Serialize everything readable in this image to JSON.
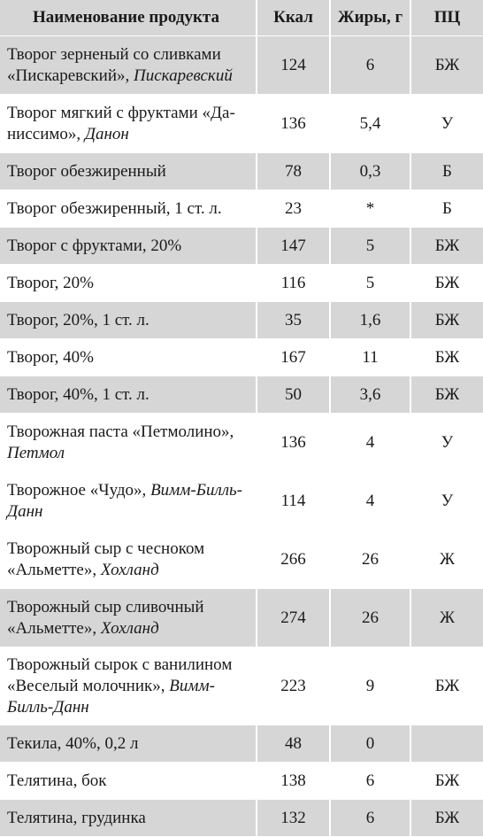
{
  "header": {
    "name": "Наименование продукта",
    "kcal": "Ккал",
    "fat": "Жиры, г",
    "pc": "ПЦ"
  },
  "rows": [
    {
      "name": "Творог зерненый со сливками «Пискаревский», ",
      "brand": "Пискаревский",
      "kcal": "124",
      "fat": "6",
      "pc": "БЖ"
    },
    {
      "name": "Творог мягкий с фруктами «Да-ниссимо», ",
      "brand": "Данон",
      "kcal": "136",
      "fat": "5,4",
      "pc": "У"
    },
    {
      "name": "Творог обезжиренный",
      "brand": "",
      "kcal": "78",
      "fat": "0,3",
      "pc": "Б"
    },
    {
      "name": "Творог обезжиренный, 1 ст. л.",
      "brand": "",
      "kcal": "23",
      "fat": "*",
      "pc": "Б"
    },
    {
      "name": "Творог с фруктами, 20%",
      "brand": "",
      "kcal": "147",
      "fat": "5",
      "pc": "БЖ"
    },
    {
      "name": "Творог, 20%",
      "brand": "",
      "kcal": "116",
      "fat": "5",
      "pc": "БЖ"
    },
    {
      "name": "Творог, 20%, 1 ст. л.",
      "brand": "",
      "kcal": "35",
      "fat": "1,6",
      "pc": "БЖ"
    },
    {
      "name": "Творог, 40%",
      "brand": "",
      "kcal": "167",
      "fat": "11",
      "pc": "БЖ"
    },
    {
      "name": "Творог, 40%, 1 ст. л.",
      "brand": "",
      "kcal": "50",
      "fat": "3,6",
      "pc": "БЖ"
    },
    {
      "name": "Творожная паста «Петмолино», ",
      "brand": "Петмол",
      "kcal": "136",
      "fat": "4",
      "pc": "У"
    },
    {
      "name": "Творожное «Чудо», ",
      "brand": "Вимм-Билль-Данн",
      "kcal": "114",
      "fat": "4",
      "pc": "У"
    },
    {
      "name": "Творожный сыр с чесноком «Альметте», ",
      "brand": "Хохланд",
      "kcal": "266",
      "fat": "26",
      "pc": "Ж"
    },
    {
      "name": "Творожный сыр сливочный «Альметте», ",
      "brand": "Хохланд",
      "kcal": "274",
      "fat": "26",
      "pc": "Ж"
    },
    {
      "name": "Творожный сырок с ванилином «Веселый молочник», ",
      "brand": "Вимм-Билль-Данн",
      "kcal": "223",
      "fat": "9",
      "pc": "БЖ"
    },
    {
      "name": "Текила, 40%, 0,2 л",
      "brand": "",
      "kcal": "48",
      "fat": "0",
      "pc": ""
    },
    {
      "name": "Телятина, бок",
      "brand": "",
      "kcal": "138",
      "fat": "6",
      "pc": "БЖ"
    },
    {
      "name": "Телятина, грудинка",
      "brand": "",
      "kcal": "132",
      "fat": "6",
      "pc": "БЖ"
    }
  ]
}
